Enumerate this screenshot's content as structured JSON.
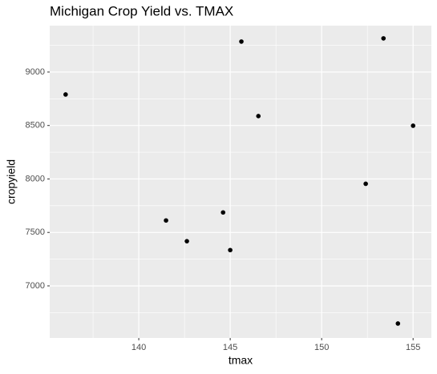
{
  "chart_data": {
    "type": "scatter",
    "title": "Michigan Crop Yield vs. TMAX",
    "x_label": "tmax",
    "y_label": "cropyield",
    "x": [
      136.0,
      145.61,
      146.54,
      153.38,
      155.0,
      152.41,
      141.49,
      144.61,
      142.63,
      145.0,
      154.17
    ],
    "values": [
      8790,
      9285,
      8588,
      9315,
      8498,
      7955,
      7612,
      7687,
      7418,
      7335,
      6648
    ],
    "color": "#000000",
    "xlim": [
      135.13,
      156.0
    ],
    "xticks": [
      140,
      145,
      150,
      155
    ],
    "ylim": [
      6513,
      9434
    ],
    "yticks": [
      7000,
      7500,
      8000,
      8500,
      9000
    ],
    "grid": true
  }
}
